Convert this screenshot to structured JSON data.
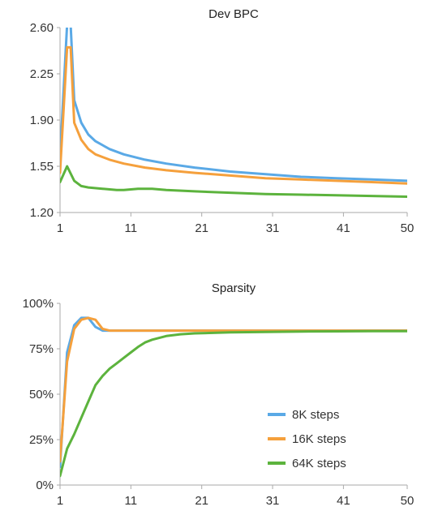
{
  "colors": {
    "blue": "#5aa9e6",
    "orange": "#f5a03c",
    "green": "#5cb33d",
    "axis": "#aaaaaa",
    "grid": "#e8e8e8"
  },
  "chart_data": [
    {
      "type": "line",
      "title": "Dev BPC",
      "xlabel": "",
      "ylabel": "",
      "xlim": [
        1,
        50
      ],
      "ylim": [
        1.2,
        2.6
      ],
      "x_ticks": [
        "1",
        "11",
        "21",
        "31",
        "41",
        "50"
      ],
      "y_ticks": [
        "1.20",
        "1.55",
        "1.90",
        "2.25",
        "2.60"
      ],
      "series": [
        {
          "color": "#5aa9e6",
          "x": [
            1,
            2,
            2.5,
            3,
            4,
            5,
            6,
            8,
            10,
            13,
            16,
            20,
            25,
            30,
            35,
            40,
            45,
            50
          ],
          "y": [
            1.62,
            2.62,
            2.62,
            2.05,
            1.88,
            1.79,
            1.74,
            1.68,
            1.64,
            1.6,
            1.57,
            1.54,
            1.51,
            1.49,
            1.47,
            1.46,
            1.45,
            1.44
          ]
        },
        {
          "color": "#f5a03c",
          "x": [
            1,
            2,
            2.5,
            3,
            4,
            5,
            6,
            8,
            10,
            13,
            16,
            20,
            25,
            30,
            35,
            40,
            45,
            50
          ],
          "y": [
            1.5,
            2.45,
            2.45,
            1.88,
            1.75,
            1.68,
            1.64,
            1.6,
            1.57,
            1.54,
            1.52,
            1.5,
            1.48,
            1.46,
            1.45,
            1.44,
            1.43,
            1.42
          ]
        },
        {
          "color": "#5cb33d",
          "x": [
            1,
            2,
            3,
            4,
            5,
            7,
            9,
            10,
            12,
            14,
            16,
            20,
            25,
            30,
            35,
            40,
            45,
            50
          ],
          "y": [
            1.43,
            1.55,
            1.44,
            1.4,
            1.39,
            1.38,
            1.37,
            1.37,
            1.38,
            1.38,
            1.37,
            1.36,
            1.35,
            1.34,
            1.335,
            1.33,
            1.325,
            1.32
          ]
        }
      ]
    },
    {
      "type": "line",
      "title": "Sparsity",
      "xlabel": "",
      "ylabel": "",
      "xlim": [
        1,
        50
      ],
      "ylim": [
        0,
        100
      ],
      "x_ticks": [
        "1",
        "11",
        "21",
        "31",
        "41",
        "50"
      ],
      "y_ticks": [
        "0%",
        "25%",
        "50%",
        "75%",
        "100%"
      ],
      "legend_position": "bottom-right",
      "legend": [
        "8K steps",
        "16K steps",
        "64K steps"
      ],
      "series": [
        {
          "name": "8K steps",
          "color": "#5aa9e6",
          "x": [
            1,
            2,
            3,
            4,
            5,
            6,
            7,
            8,
            10,
            15,
            20,
            30,
            40,
            50
          ],
          "y": [
            10,
            73,
            88,
            92,
            92,
            87,
            85,
            85,
            85,
            85,
            85,
            85,
            85,
            85
          ]
        },
        {
          "name": "16K steps",
          "color": "#f5a03c",
          "x": [
            1,
            2,
            3,
            4,
            5,
            6,
            7,
            8,
            10,
            15,
            20,
            30,
            40,
            50
          ],
          "y": [
            13,
            68,
            86,
            91,
            92,
            91,
            86,
            85,
            85,
            85,
            85,
            85,
            85,
            85
          ]
        },
        {
          "name": "64K steps",
          "color": "#5cb33d",
          "x": [
            1,
            2,
            3,
            4,
            5,
            6,
            7,
            8,
            9,
            10,
            11,
            12,
            13,
            14,
            15,
            16,
            18,
            20,
            25,
            30,
            35,
            40,
            45,
            50
          ],
          "y": [
            5,
            20,
            28,
            37,
            46,
            55,
            60,
            64,
            67,
            70,
            73,
            76,
            78.5,
            80,
            81,
            82,
            83,
            83.5,
            84,
            84.3,
            84.5,
            84.6,
            84.7,
            84.7
          ]
        }
      ]
    }
  ]
}
